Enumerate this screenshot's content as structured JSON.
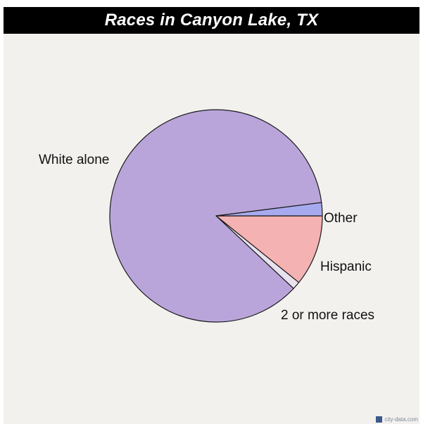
{
  "chart_data": {
    "type": "pie",
    "title": "Races in Canyon Lake, TX",
    "slices": [
      {
        "name": "White alone",
        "value": 86.0,
        "color": "#b9a5da"
      },
      {
        "name": "2 or more races",
        "value": 1.2,
        "color": "#e8e2ee"
      },
      {
        "name": "Hispanic",
        "value": 10.8,
        "color": "#f5b2b2"
      },
      {
        "name": "Other",
        "value": 2.0,
        "color": "#a8aaf0"
      }
    ],
    "start_angle_deg": 0,
    "direction": "clockwise-from-3-oclock"
  },
  "footer": {
    "site_icon": "city-data-icon",
    "text": "city-data.com"
  }
}
